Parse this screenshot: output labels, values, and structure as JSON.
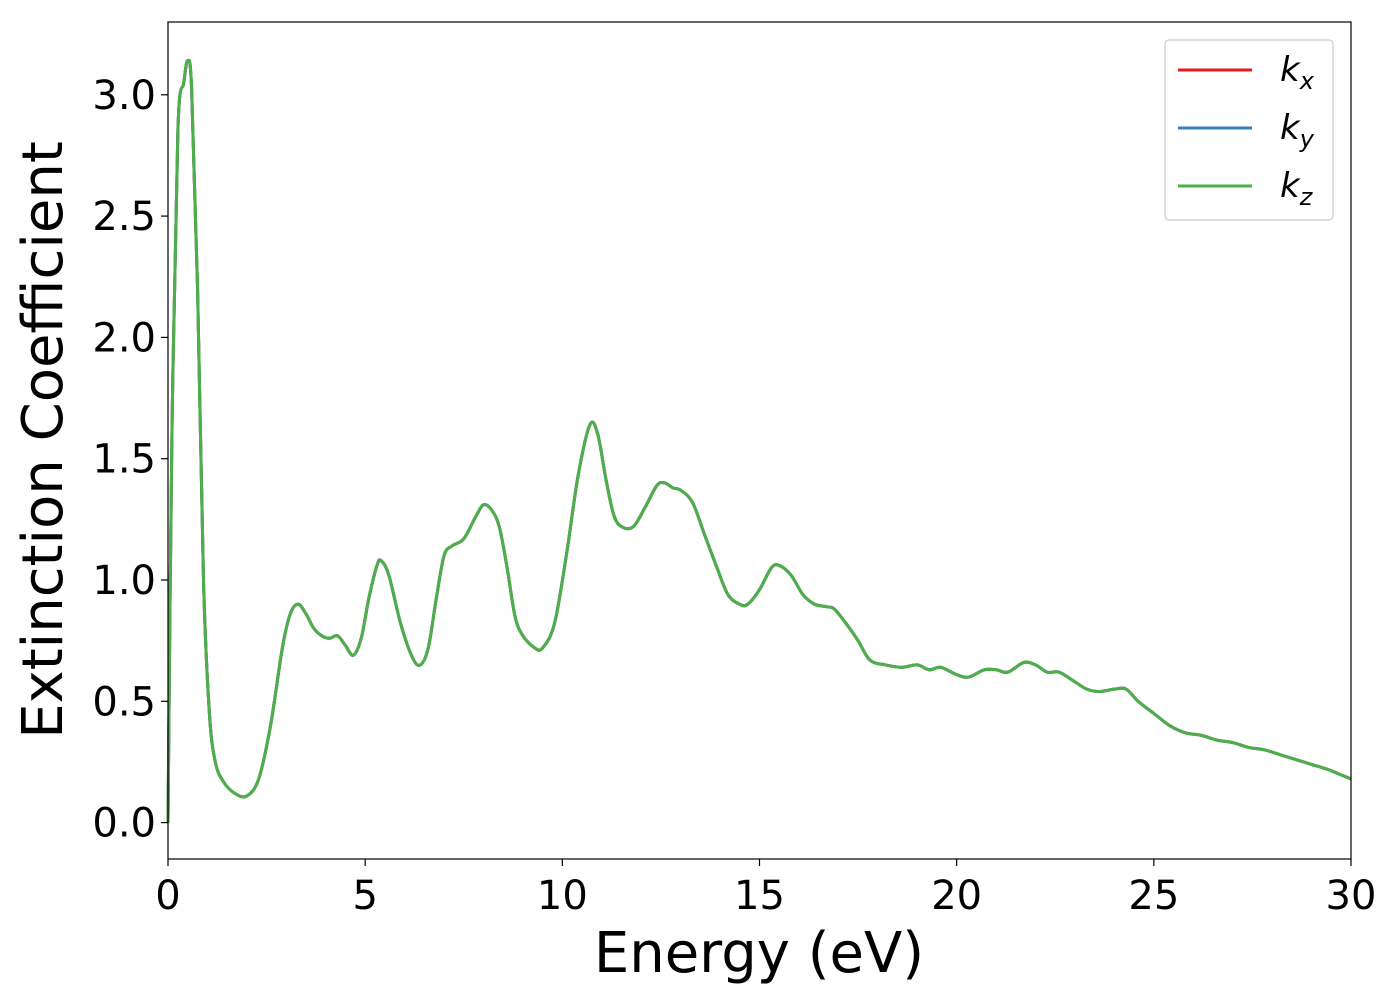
{
  "chart_data": {
    "type": "line",
    "title": "",
    "xlabel": "Energy (eV)",
    "ylabel": "Extinction Coefficient",
    "xlim": [
      0,
      30
    ],
    "ylim": [
      -0.15,
      3.3
    ],
    "xticks": [
      0,
      5,
      10,
      15,
      20,
      25,
      30
    ],
    "xtick_labels": [
      "0",
      "5",
      "10",
      "15",
      "20",
      "25",
      "30"
    ],
    "yticks": [
      0.0,
      0.5,
      1.0,
      1.5,
      2.0,
      2.5,
      3.0
    ],
    "ytick_labels": [
      "0.0",
      "0.5",
      "1.0",
      "1.5",
      "2.0",
      "2.5",
      "3.0"
    ],
    "grid": false,
    "legend_position": "top-right",
    "series": [
      {
        "name": "k",
        "subscript": "x",
        "color": "#e41a1c",
        "x": [
          0,
          0.1,
          0.25,
          0.4,
          0.5,
          0.6,
          0.75,
          0.9,
          1.05,
          1.2,
          1.4,
          1.7,
          2.0,
          2.3,
          2.6,
          2.9,
          3.1,
          3.3,
          3.5,
          3.7,
          3.9,
          4.1,
          4.3,
          4.5,
          4.7,
          4.9,
          5.1,
          5.3,
          5.4,
          5.6,
          5.9,
          6.2,
          6.4,
          6.6,
          6.8,
          7.0,
          7.2,
          7.5,
          7.8,
          8.0,
          8.2,
          8.4,
          8.6,
          8.8,
          9.0,
          9.3,
          9.5,
          9.8,
          10.1,
          10.4,
          10.7,
          10.9,
          11.1,
          11.3,
          11.5,
          11.8,
          12.1,
          12.4,
          12.6,
          12.8,
          13.0,
          13.3,
          13.6,
          13.9,
          14.2,
          14.5,
          14.7,
          15.0,
          15.3,
          15.5,
          15.8,
          16.1,
          16.4,
          16.7,
          16.9,
          17.2,
          17.5,
          17.8,
          18.2,
          18.6,
          19.0,
          19.3,
          19.6,
          20.0,
          20.3,
          20.7,
          21.0,
          21.3,
          21.7,
          22.0,
          22.3,
          22.6,
          23.0,
          23.3,
          23.6,
          24.0,
          24.3,
          24.6,
          25.0,
          25.4,
          25.8,
          26.2,
          26.6,
          27.0,
          27.4,
          27.8,
          28.2,
          28.6,
          29.0,
          29.4,
          29.7,
          30.0
        ],
        "y": [
          0.0,
          1.6,
          2.85,
          3.05,
          3.14,
          3.02,
          2.2,
          1.0,
          0.45,
          0.25,
          0.17,
          0.12,
          0.11,
          0.18,
          0.4,
          0.72,
          0.86,
          0.9,
          0.86,
          0.8,
          0.77,
          0.76,
          0.77,
          0.73,
          0.69,
          0.76,
          0.93,
          1.06,
          1.08,
          1.02,
          0.82,
          0.68,
          0.65,
          0.72,
          0.92,
          1.1,
          1.14,
          1.17,
          1.26,
          1.31,
          1.29,
          1.22,
          1.05,
          0.85,
          0.77,
          0.72,
          0.72,
          0.82,
          1.1,
          1.43,
          1.64,
          1.6,
          1.42,
          1.27,
          1.22,
          1.22,
          1.3,
          1.39,
          1.4,
          1.38,
          1.37,
          1.32,
          1.19,
          1.06,
          0.94,
          0.9,
          0.9,
          0.96,
          1.05,
          1.06,
          1.02,
          0.94,
          0.9,
          0.89,
          0.88,
          0.82,
          0.75,
          0.67,
          0.65,
          0.64,
          0.65,
          0.63,
          0.64,
          0.61,
          0.6,
          0.63,
          0.63,
          0.62,
          0.66,
          0.65,
          0.62,
          0.62,
          0.58,
          0.55,
          0.54,
          0.55,
          0.55,
          0.5,
          0.45,
          0.4,
          0.37,
          0.36,
          0.34,
          0.33,
          0.31,
          0.3,
          0.28,
          0.26,
          0.24,
          0.22,
          0.2,
          0.18
        ]
      },
      {
        "name": "k",
        "subscript": "y",
        "color": "#377eb8",
        "x": [
          0,
          0.1,
          0.25,
          0.4,
          0.5,
          0.6,
          0.75,
          0.9,
          1.05,
          1.2,
          1.4,
          1.7,
          2.0,
          2.3,
          2.6,
          2.9,
          3.1,
          3.3,
          3.5,
          3.7,
          3.9,
          4.1,
          4.3,
          4.5,
          4.7,
          4.9,
          5.1,
          5.3,
          5.4,
          5.6,
          5.9,
          6.2,
          6.4,
          6.6,
          6.8,
          7.0,
          7.2,
          7.5,
          7.8,
          8.0,
          8.2,
          8.4,
          8.6,
          8.8,
          9.0,
          9.3,
          9.5,
          9.8,
          10.1,
          10.4,
          10.7,
          10.9,
          11.1,
          11.3,
          11.5,
          11.8,
          12.1,
          12.4,
          12.6,
          12.8,
          13.0,
          13.3,
          13.6,
          13.9,
          14.2,
          14.5,
          14.7,
          15.0,
          15.3,
          15.5,
          15.8,
          16.1,
          16.4,
          16.7,
          16.9,
          17.2,
          17.5,
          17.8,
          18.2,
          18.6,
          19.0,
          19.3,
          19.6,
          20.0,
          20.3,
          20.7,
          21.0,
          21.3,
          21.7,
          22.0,
          22.3,
          22.6,
          23.0,
          23.3,
          23.6,
          24.0,
          24.3,
          24.6,
          25.0,
          25.4,
          25.8,
          26.2,
          26.6,
          27.0,
          27.4,
          27.8,
          28.2,
          28.6,
          29.0,
          29.4,
          29.7,
          30.0
        ],
        "y": [
          0.0,
          1.6,
          2.85,
          3.05,
          3.14,
          3.02,
          2.2,
          1.0,
          0.45,
          0.25,
          0.17,
          0.12,
          0.11,
          0.18,
          0.4,
          0.72,
          0.86,
          0.9,
          0.86,
          0.8,
          0.77,
          0.76,
          0.77,
          0.73,
          0.69,
          0.76,
          0.93,
          1.06,
          1.08,
          1.02,
          0.82,
          0.68,
          0.65,
          0.72,
          0.92,
          1.1,
          1.14,
          1.17,
          1.26,
          1.31,
          1.29,
          1.22,
          1.05,
          0.85,
          0.77,
          0.72,
          0.72,
          0.82,
          1.1,
          1.43,
          1.64,
          1.6,
          1.42,
          1.27,
          1.22,
          1.22,
          1.3,
          1.39,
          1.4,
          1.38,
          1.37,
          1.32,
          1.19,
          1.06,
          0.94,
          0.9,
          0.9,
          0.96,
          1.05,
          1.06,
          1.02,
          0.94,
          0.9,
          0.89,
          0.88,
          0.82,
          0.75,
          0.67,
          0.65,
          0.64,
          0.65,
          0.63,
          0.64,
          0.61,
          0.6,
          0.63,
          0.63,
          0.62,
          0.66,
          0.65,
          0.62,
          0.62,
          0.58,
          0.55,
          0.54,
          0.55,
          0.55,
          0.5,
          0.45,
          0.4,
          0.37,
          0.36,
          0.34,
          0.33,
          0.31,
          0.3,
          0.28,
          0.26,
          0.24,
          0.22,
          0.2,
          0.18
        ]
      },
      {
        "name": "k",
        "subscript": "z",
        "color": "#4daf4a",
        "x": [
          0,
          0.1,
          0.25,
          0.4,
          0.5,
          0.6,
          0.75,
          0.9,
          1.05,
          1.2,
          1.4,
          1.7,
          2.0,
          2.3,
          2.6,
          2.9,
          3.1,
          3.3,
          3.5,
          3.7,
          3.9,
          4.1,
          4.3,
          4.5,
          4.7,
          4.9,
          5.1,
          5.3,
          5.4,
          5.6,
          5.9,
          6.2,
          6.4,
          6.6,
          6.8,
          7.0,
          7.2,
          7.5,
          7.8,
          8.0,
          8.2,
          8.4,
          8.6,
          8.8,
          9.0,
          9.3,
          9.5,
          9.8,
          10.1,
          10.4,
          10.7,
          10.9,
          11.1,
          11.3,
          11.5,
          11.8,
          12.1,
          12.4,
          12.6,
          12.8,
          13.0,
          13.3,
          13.6,
          13.9,
          14.2,
          14.5,
          14.7,
          15.0,
          15.3,
          15.5,
          15.8,
          16.1,
          16.4,
          16.7,
          16.9,
          17.2,
          17.5,
          17.8,
          18.2,
          18.6,
          19.0,
          19.3,
          19.6,
          20.0,
          20.3,
          20.7,
          21.0,
          21.3,
          21.7,
          22.0,
          22.3,
          22.6,
          23.0,
          23.3,
          23.6,
          24.0,
          24.3,
          24.6,
          25.0,
          25.4,
          25.8,
          26.2,
          26.6,
          27.0,
          27.4,
          27.8,
          28.2,
          28.6,
          29.0,
          29.4,
          29.7,
          30.0
        ],
        "y": [
          0.0,
          1.6,
          2.85,
          3.05,
          3.14,
          3.02,
          2.2,
          1.0,
          0.45,
          0.25,
          0.17,
          0.12,
          0.11,
          0.18,
          0.4,
          0.72,
          0.86,
          0.9,
          0.86,
          0.8,
          0.77,
          0.76,
          0.77,
          0.73,
          0.69,
          0.76,
          0.93,
          1.06,
          1.08,
          1.02,
          0.82,
          0.68,
          0.65,
          0.72,
          0.92,
          1.1,
          1.14,
          1.17,
          1.26,
          1.31,
          1.29,
          1.22,
          1.05,
          0.85,
          0.77,
          0.72,
          0.72,
          0.82,
          1.1,
          1.43,
          1.64,
          1.6,
          1.42,
          1.27,
          1.22,
          1.22,
          1.3,
          1.39,
          1.4,
          1.38,
          1.37,
          1.32,
          1.19,
          1.06,
          0.94,
          0.9,
          0.9,
          0.96,
          1.05,
          1.06,
          1.02,
          0.94,
          0.9,
          0.89,
          0.88,
          0.82,
          0.75,
          0.67,
          0.65,
          0.64,
          0.65,
          0.63,
          0.64,
          0.61,
          0.6,
          0.63,
          0.63,
          0.62,
          0.66,
          0.65,
          0.62,
          0.62,
          0.58,
          0.55,
          0.54,
          0.55,
          0.55,
          0.5,
          0.45,
          0.4,
          0.37,
          0.36,
          0.34,
          0.33,
          0.31,
          0.3,
          0.28,
          0.26,
          0.24,
          0.22,
          0.2,
          0.18
        ]
      }
    ]
  }
}
